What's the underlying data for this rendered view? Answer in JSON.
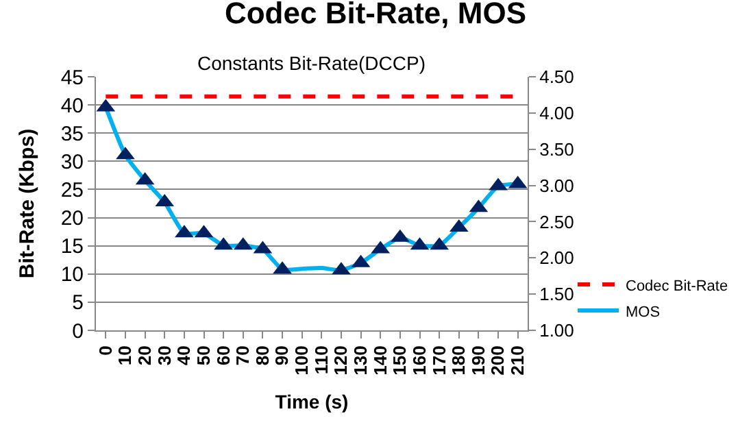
{
  "chart_data": {
    "type": "line",
    "title": "Codec Bit-Rate, MOS",
    "subtitle": "Constants Bit-Rate(DCCP)",
    "xlabel": "Time (s)",
    "ylabel": "Bit-Rate (Kbps)",
    "categories": [
      "0",
      "10",
      "20",
      "30",
      "40",
      "50",
      "60",
      "70",
      "80",
      "90",
      "100",
      "110",
      "120",
      "130",
      "140",
      "150",
      "160",
      "170",
      "180",
      "190",
      "200",
      "210"
    ],
    "series": [
      {
        "name": "Codec Bit-Rate",
        "color": "#ff0000",
        "line_style": "dashed",
        "marker": "none",
        "values": [
          41.5,
          41.5,
          41.5,
          41.5,
          41.5,
          41.5,
          41.5,
          41.5,
          41.5,
          41.5,
          41.5,
          41.5,
          41.5,
          41.5,
          41.5,
          41.5,
          41.5,
          41.5,
          41.5,
          41.5,
          41.5,
          41.5
        ]
      },
      {
        "name": "MOS",
        "color": "#00b0f0",
        "axis": "y2",
        "line_style": "solid",
        "marker": "none",
        "values": [
          4.08,
          3.42,
          3.07,
          2.77,
          2.34,
          2.34,
          2.17,
          2.17,
          2.12,
          1.84,
          1.85,
          1.86,
          1.83,
          1.93,
          2.12,
          2.28,
          2.17,
          2.17,
          2.42,
          2.69,
          2.99,
          3.02
        ]
      },
      {
        "type": "scatter",
        "color": "#002060",
        "axis": "y2",
        "marker": "triangle",
        "values": [
          4.08,
          3.42,
          3.07,
          2.77,
          2.34,
          2.34,
          2.17,
          2.17,
          2.12,
          1.84,
          null,
          null,
          1.83,
          1.93,
          2.12,
          2.28,
          2.17,
          2.17,
          2.42,
          2.69,
          2.99,
          3.02
        ]
      }
    ],
    "ylim": [
      0,
      45
    ],
    "yticks": [
      0,
      5,
      10,
      15,
      20,
      25,
      30,
      35,
      40,
      45
    ],
    "y2lim": [
      1,
      4.5
    ],
    "y2ticks": [
      {
        "value": 1,
        "label": "1.00"
      },
      {
        "value": 1.5,
        "label": "1.50"
      },
      {
        "value": 2,
        "label": "2.00"
      },
      {
        "value": 2.5,
        "label": "2.50"
      },
      {
        "value": 3,
        "label": "3.00"
      },
      {
        "value": 3.5,
        "label": "3.50"
      },
      {
        "value": 4,
        "label": "4.00"
      },
      {
        "value": 4.5,
        "label": "4.50"
      }
    ],
    "grid": "y",
    "legend": "bottom right"
  }
}
